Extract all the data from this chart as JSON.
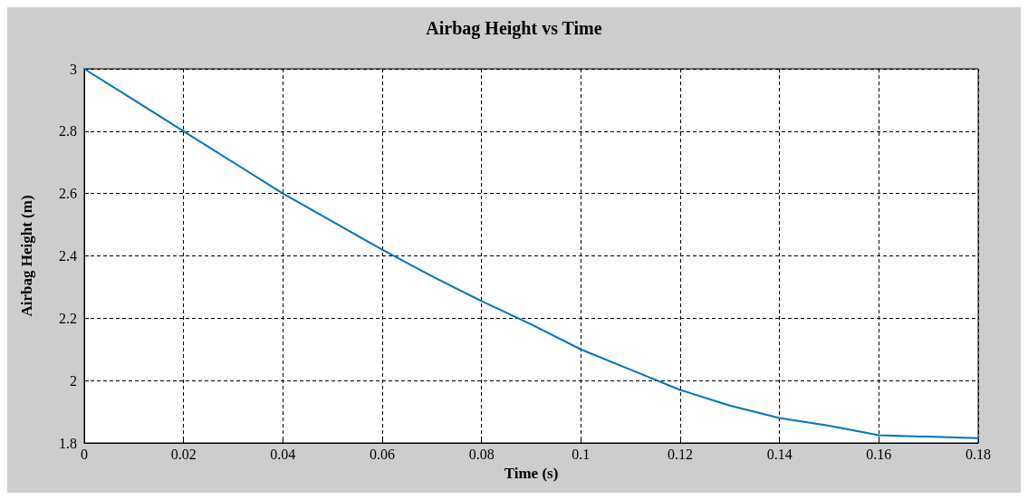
{
  "chart_data": {
    "type": "line",
    "title": "Airbag Height vs Time",
    "xlabel": "Time (s)",
    "ylabel": "Airbag Height (m)",
    "x": [
      0,
      0.01,
      0.02,
      0.03,
      0.04,
      0.05,
      0.06,
      0.07,
      0.08,
      0.09,
      0.1,
      0.11,
      0.12,
      0.13,
      0.14,
      0.15,
      0.16,
      0.17,
      0.18
    ],
    "series": [
      {
        "color": "#0072bd",
        "values": [
          3,
          2.9,
          2.8,
          2.7,
          2.6,
          2.51,
          2.42,
          2.335,
          2.255,
          2.18,
          2.1,
          2.035,
          1.97,
          1.92,
          1.88,
          1.855,
          1.825,
          1.82,
          1.815
        ]
      }
    ],
    "xlim": [
      0,
      0.18
    ],
    "xticks": [
      0,
      0.02,
      0.04,
      0.06,
      0.08,
      0.1,
      0.12,
      0.14,
      0.16,
      0.18
    ],
    "ylim": [
      1.8,
      3
    ],
    "yticks": [
      1.8,
      2,
      2.2,
      2.4,
      2.6,
      2.8,
      3
    ],
    "grid": true,
    "marker": "none",
    "line_style": "solid"
  }
}
